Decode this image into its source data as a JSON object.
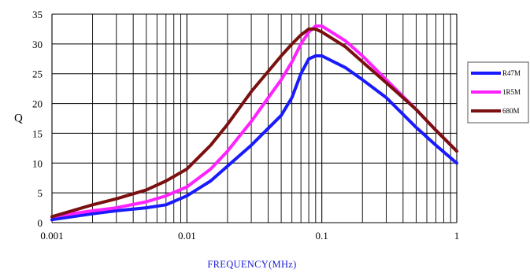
{
  "chart_data": {
    "type": "line",
    "xscale": "log",
    "xlim": [
      0.001,
      1
    ],
    "ylim": [
      0,
      35
    ],
    "xticks": [
      "0.001",
      "0.01",
      "0.1",
      "1"
    ],
    "yticks": [
      "0",
      "5",
      "10",
      "15",
      "20",
      "25",
      "30",
      "35"
    ],
    "ylabel": "Q",
    "xlabel": "FREQUENCY(MHz)",
    "grid": true,
    "legend_position": "right",
    "series": [
      {
        "name": "R47M",
        "color": "#1a1aff",
        "x": [
          0.001,
          0.002,
          0.003,
          0.005,
          0.007,
          0.01,
          0.015,
          0.02,
          0.03,
          0.05,
          0.06,
          0.07,
          0.08,
          0.09,
          0.1,
          0.15,
          0.2,
          0.3,
          0.5,
          0.7,
          1
        ],
        "y": [
          0.5,
          1.5,
          2,
          2.5,
          3,
          4.5,
          7,
          9.5,
          13,
          18,
          21,
          25,
          27.5,
          28,
          28,
          26,
          24,
          21,
          16,
          13,
          10
        ]
      },
      {
        "name": "1R5M",
        "color": "#ff22ff",
        "x": [
          0.001,
          0.002,
          0.003,
          0.005,
          0.007,
          0.01,
          0.015,
          0.02,
          0.03,
          0.05,
          0.06,
          0.07,
          0.08,
          0.09,
          0.1,
          0.15,
          0.2,
          0.3,
          0.5,
          0.7,
          1
        ],
        "y": [
          1,
          2,
          2.5,
          3.5,
          4.5,
          6,
          9,
          12,
          17,
          24,
          27,
          30,
          32,
          33,
          33,
          30.5,
          28,
          24,
          19,
          15.5,
          12
        ]
      },
      {
        "name": "680M",
        "color": "#7a1010",
        "x": [
          0.001,
          0.002,
          0.003,
          0.005,
          0.007,
          0.01,
          0.015,
          0.02,
          0.03,
          0.05,
          0.06,
          0.07,
          0.08,
          0.09,
          0.1,
          0.15,
          0.2,
          0.3,
          0.5,
          0.7,
          1
        ],
        "y": [
          1,
          3,
          4,
          5.5,
          7,
          9,
          13,
          16.5,
          22,
          28,
          30,
          31.5,
          32.5,
          32.5,
          32,
          29.5,
          27,
          23.5,
          19,
          15.5,
          12
        ]
      }
    ]
  }
}
